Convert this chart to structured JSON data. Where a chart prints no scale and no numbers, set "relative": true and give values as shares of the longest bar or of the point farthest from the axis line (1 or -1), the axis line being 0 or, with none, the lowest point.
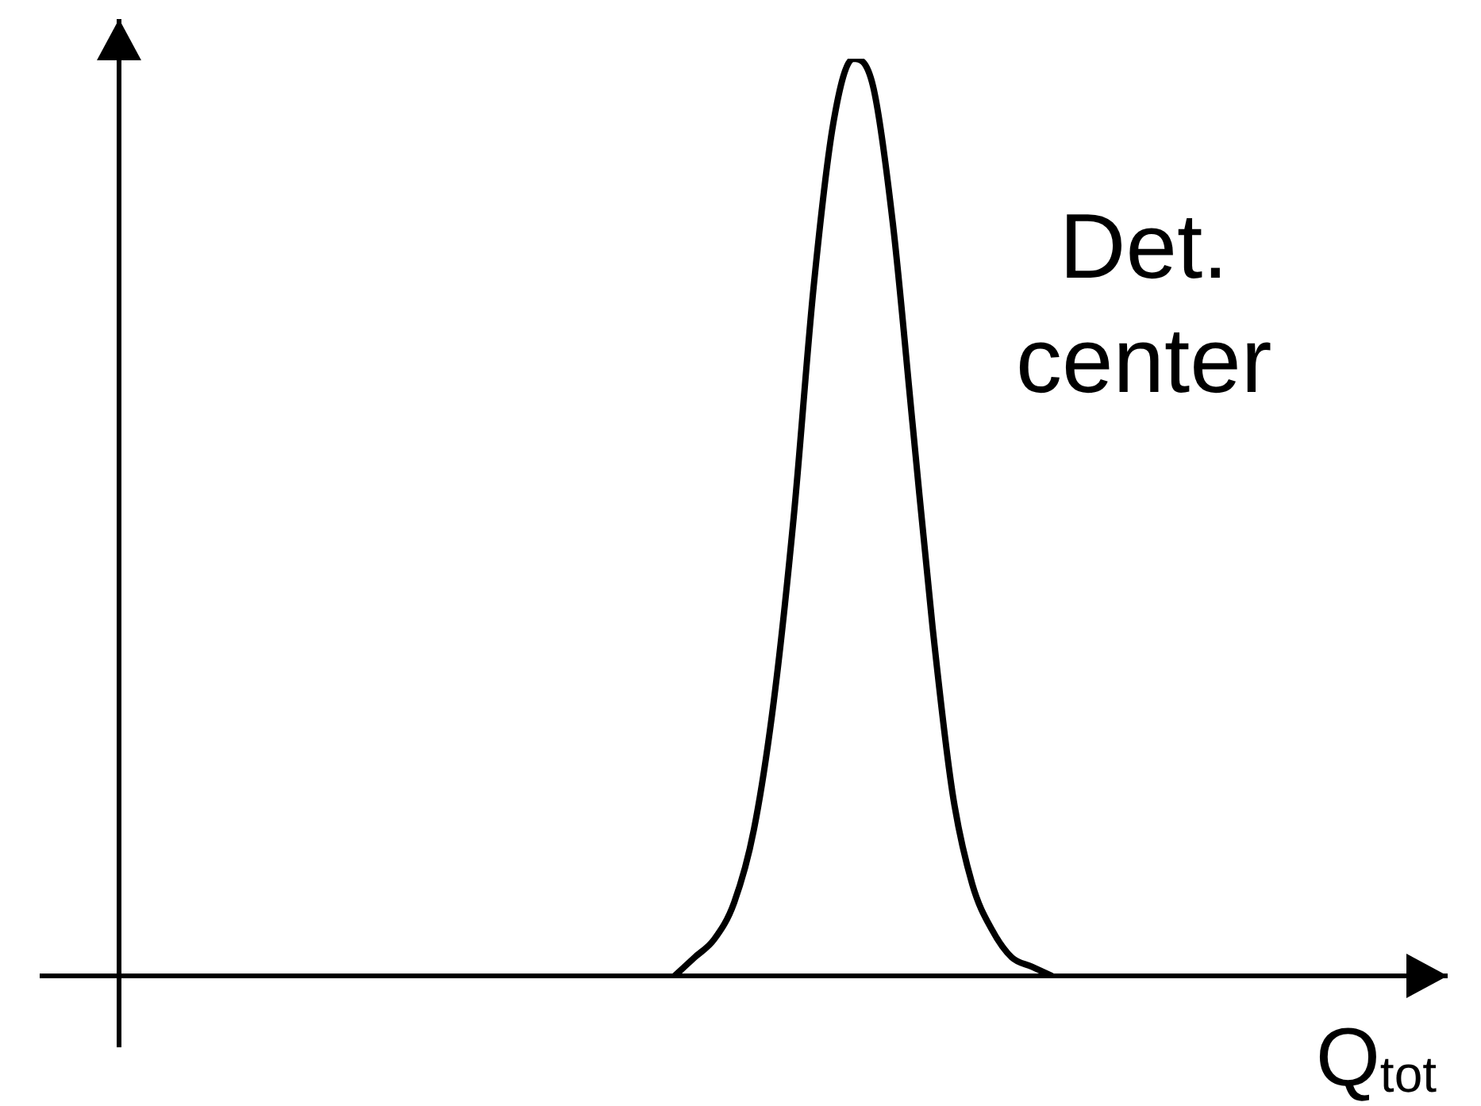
{
  "chart_data": {
    "type": "line",
    "xlabel": "Q$_{tot}$",
    "annotations": [
      "Det.\ncenter"
    ],
    "relative": true,
    "marker": "none",
    "categories": [
      null,
      null,
      null,
      null,
      null,
      null,
      null,
      null,
      null,
      null,
      null,
      null,
      null,
      null,
      null,
      null,
      null,
      null,
      null,
      null,
      null,
      null,
      null,
      null,
      null,
      null,
      null,
      null,
      null,
      null,
      null,
      null,
      null,
      null,
      null,
      null,
      null,
      null,
      null,
      null,
      null,
      null,
      null,
      null,
      null,
      null,
      null,
      null,
      null,
      null,
      null,
      null,
      null,
      null,
      null,
      null,
      null,
      null,
      null,
      null,
      null,
      null,
      null,
      null,
      null,
      null,
      null
    ],
    "series": [
      {
        "color": "#000000",
        "values": [
          null,
          null,
          null,
          null,
          null,
          null,
          null,
          null,
          null,
          null,
          null,
          null,
          null,
          null,
          null,
          null,
          null,
          null,
          null,
          null,
          null,
          null,
          null,
          null,
          null,
          null,
          null,
          null,
          0,
          0.02,
          0.04,
          0.08,
          0.16,
          0.3,
          0.5,
          0.75,
          0.93,
          1,
          0.97,
          0.82,
          0.6,
          0.38,
          0.2,
          0.1,
          0.05,
          0.02,
          0.01,
          0,
          null,
          null,
          null,
          null,
          null,
          null,
          null,
          null,
          null,
          null,
          null,
          null,
          null,
          null,
          null,
          null,
          null,
          null,
          null
        ]
      }
    ]
  }
}
